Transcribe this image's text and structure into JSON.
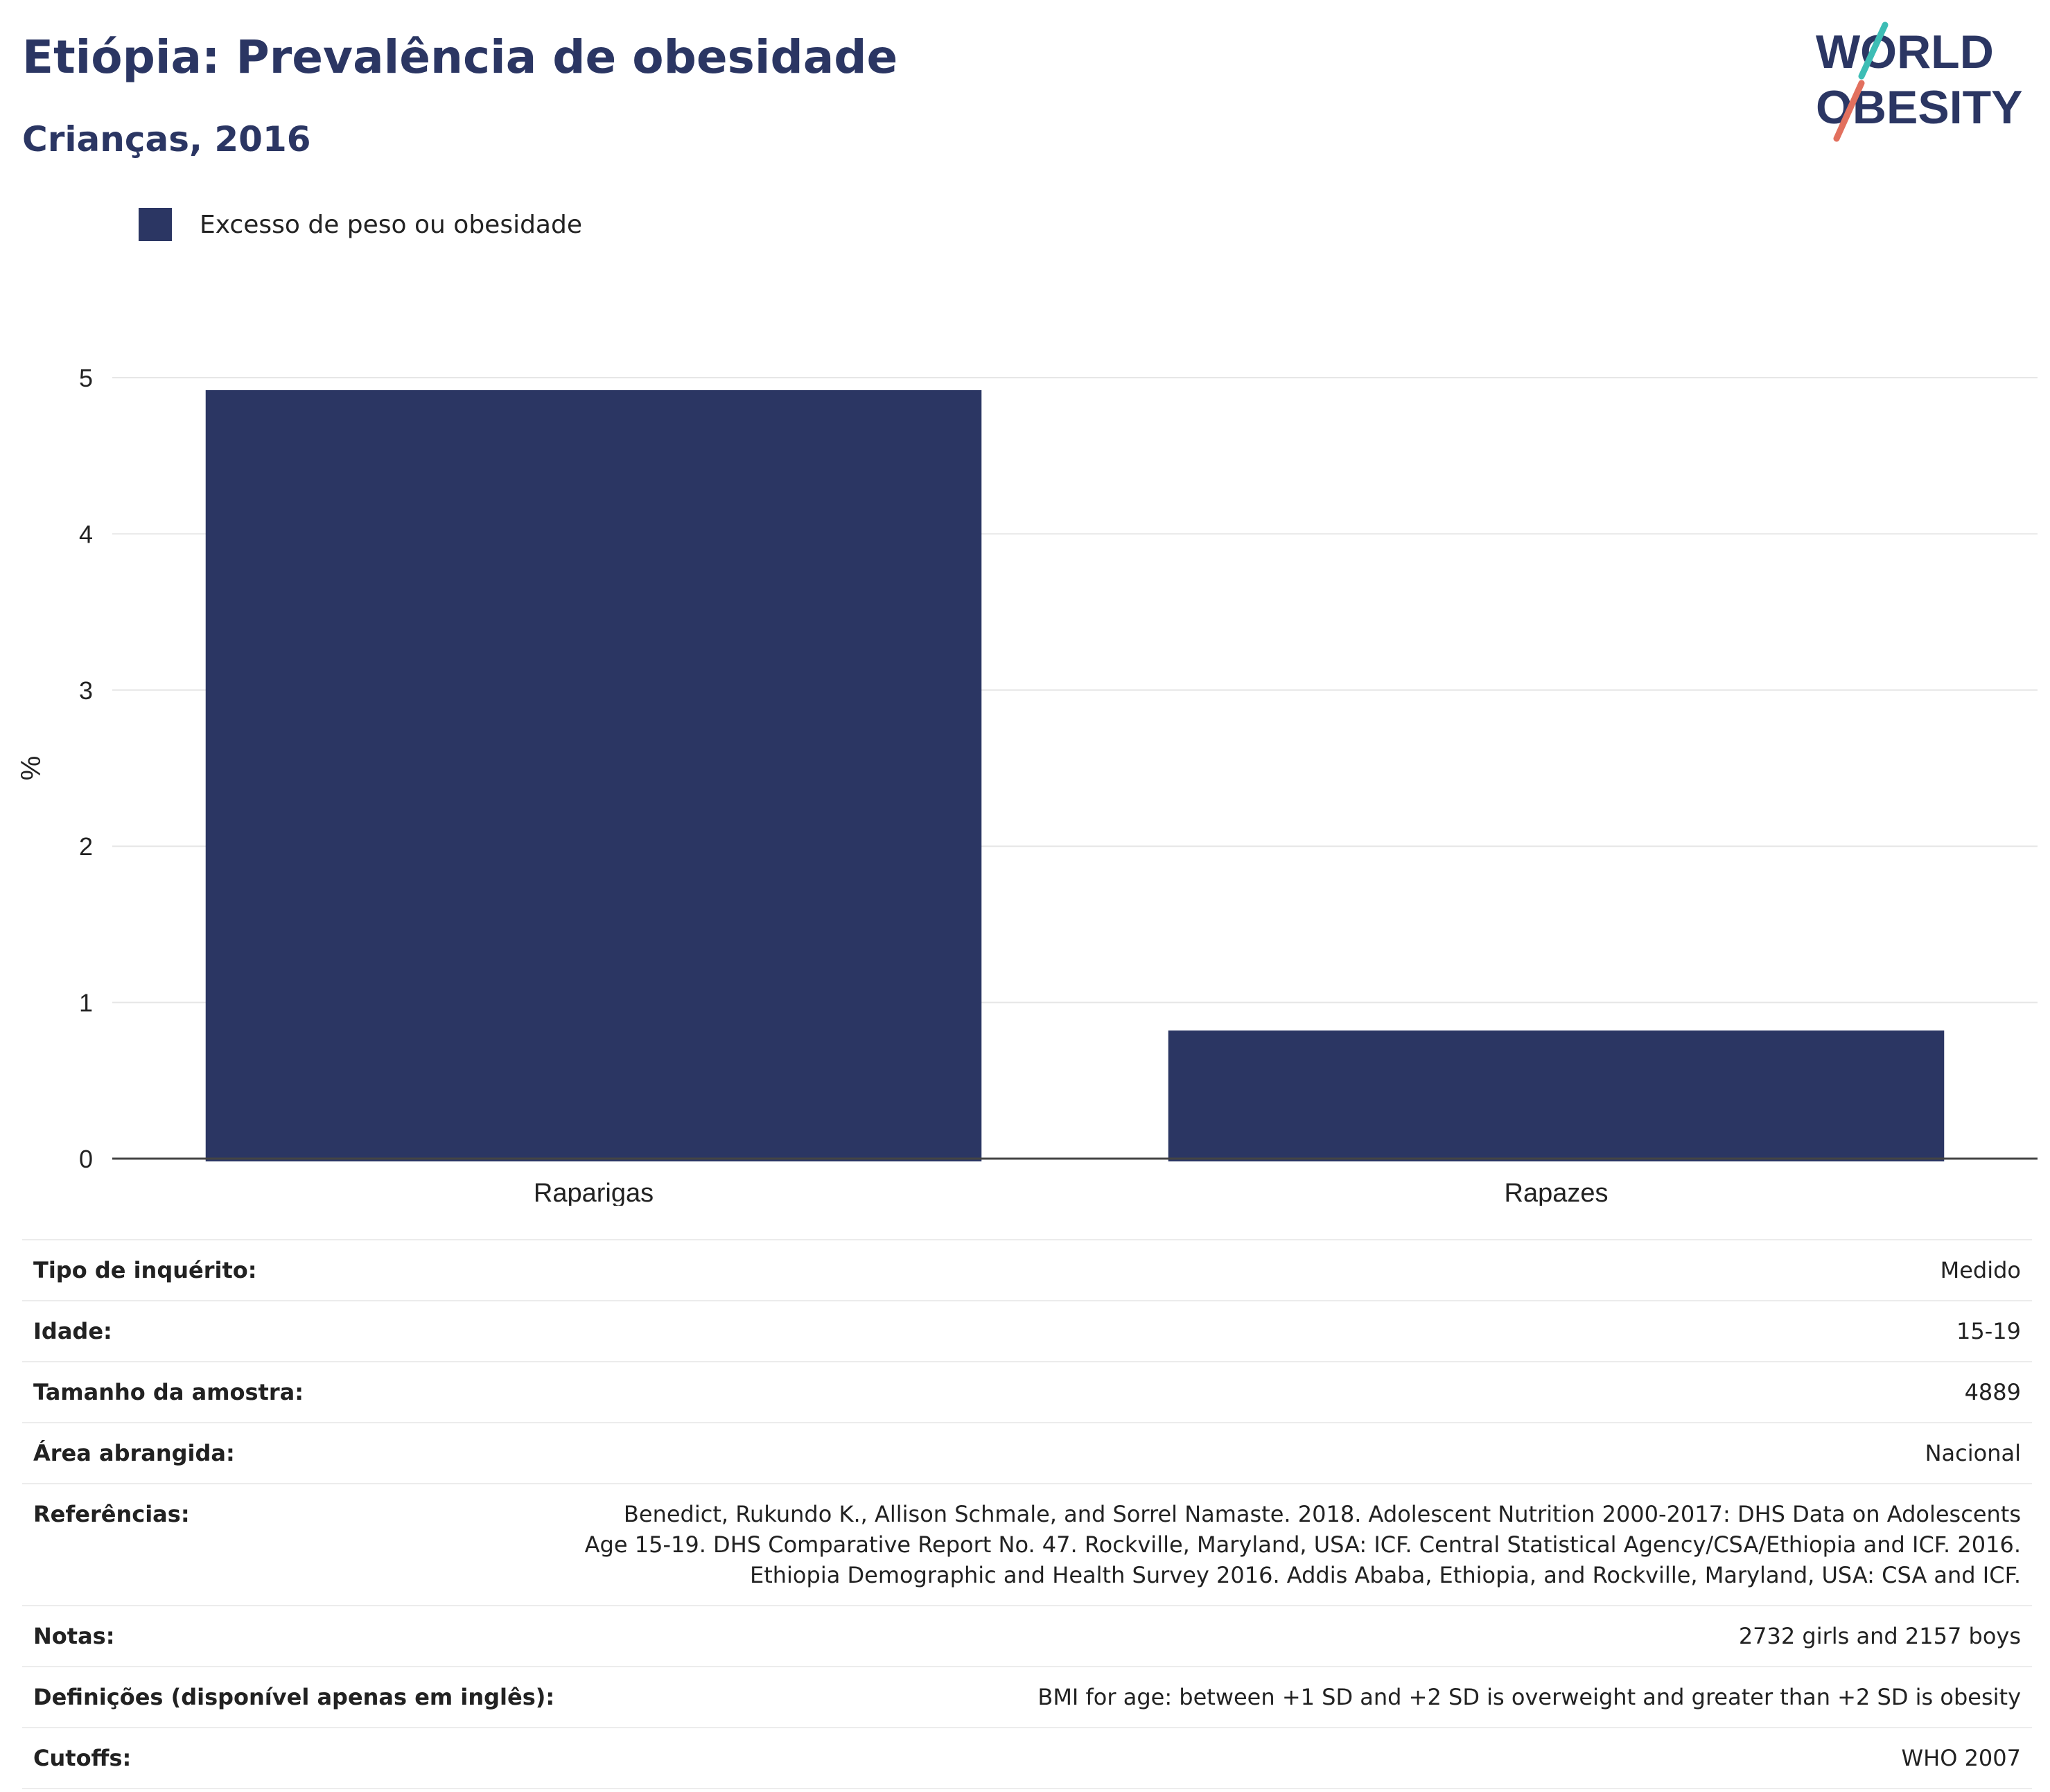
{
  "colors": {
    "primary": "#2b3663",
    "teal": "#3dbdb5",
    "coral": "#e2705e",
    "grid": "#e6e6e6",
    "axis": "#444444"
  },
  "logo": {
    "line1": "WORLD",
    "line2": "OBESITY"
  },
  "chart_data": {
    "type": "bar",
    "title": "Etiópia: Prevalência de obesidade",
    "subtitle": "Crianças, 2016",
    "categories": [
      "Raparigas",
      "Rapazes"
    ],
    "series": [
      {
        "name": "Excesso de peso ou obesidade",
        "values": [
          4.92,
          0.82
        ]
      }
    ],
    "ylabel": "%",
    "xlabel": "",
    "ylim": [
      0,
      5
    ],
    "yticks": [
      "0",
      "1",
      "2",
      "3",
      "4",
      "5"
    ],
    "grid": true,
    "legend_position": "top-left"
  },
  "metadata": [
    {
      "label": "Tipo de inquérito:",
      "value": "Medido"
    },
    {
      "label": "Idade:",
      "value": "15-19"
    },
    {
      "label": "Tamanho da amostra:",
      "value": "4889"
    },
    {
      "label": "Área abrangida:",
      "value": "Nacional"
    },
    {
      "label": "Referências:",
      "value": "Benedict, Rukundo K., Allison Schmale, and Sorrel Namaste. 2018. Adolescent Nutrition 2000-2017: DHS Data on Adolescents Age 15-19. DHS Comparative Report No. 47. Rockville, Maryland, USA: ICF. Central Statistical Agency/CSA/Ethiopia and ICF. 2016. Ethiopia Demographic and Health Survey 2016. Addis Ababa, Ethiopia, and Rockville, Maryland, USA: CSA and ICF."
    },
    {
      "label": "Notas:",
      "value": "2732 girls and 2157 boys"
    },
    {
      "label": "Definições (disponível apenas em inglês):",
      "value": "BMI for age: between +1 SD and +2 SD is overweight and greater than +2 SD is obesity"
    },
    {
      "label": "Cutoffs:",
      "value": "WHO 2007"
    }
  ]
}
